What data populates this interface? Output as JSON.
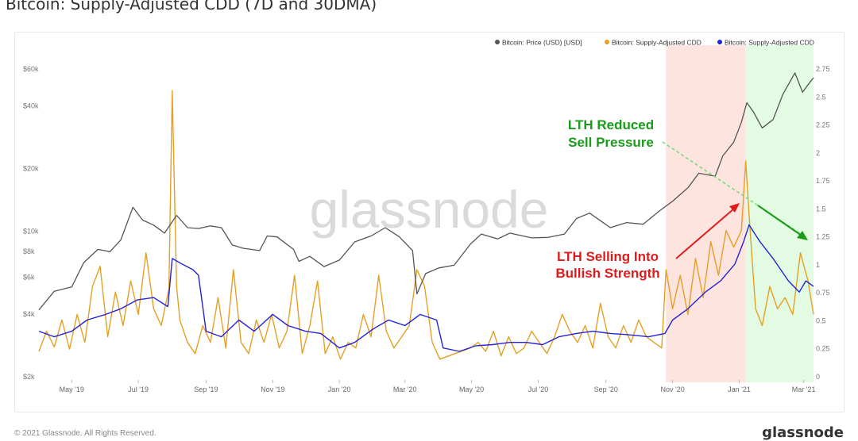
{
  "title": "Bitcoin: Supply-Adjusted CDD (7D and 30DMA)",
  "footer": {
    "copyright": "© 2021 Glassnode. All Rights Reserved.",
    "brand": "glassnode"
  },
  "watermark": "glassnode",
  "colors": {
    "price": "#555555",
    "cdd7d": "#e5a024",
    "cdd30d": "#2323d8",
    "red_zone": "#fde4df",
    "green_zone": "#e2fbe2",
    "annotation_green": "#1a9c1a",
    "annotation_red": "#e01b1b"
  },
  "legend": [
    "Bitcoin: Price (USD) [USD]",
    "Bitcoin: Supply-Adjusted CDD",
    "Bitcoin: Supply-Adjusted CDD"
  ],
  "annotations": {
    "reduced": [
      "LTH Reduced",
      "Sell Pressure"
    ],
    "selling": [
      "LTH Selling Into",
      "Bullish Strength"
    ]
  },
  "chart_data": {
    "type": "line",
    "title": "Bitcoin: Supply-Adjusted CDD (7D and 30DMA)",
    "x_start": "2019-04-01",
    "x_end": "2021-03-10",
    "x_ticks": [
      {
        "label": "May '19",
        "date": "2019-05-01"
      },
      {
        "label": "Jul '19",
        "date": "2019-07-01"
      },
      {
        "label": "Sep '19",
        "date": "2019-09-01"
      },
      {
        "label": "Nov '19",
        "date": "2019-11-01"
      },
      {
        "label": "Jan '20",
        "date": "2020-01-01"
      },
      {
        "label": "Mar '20",
        "date": "2020-03-01"
      },
      {
        "label": "May '20",
        "date": "2020-05-01"
      },
      {
        "label": "Jul '20",
        "date": "2020-07-01"
      },
      {
        "label": "Sep '20",
        "date": "2020-09-01"
      },
      {
        "label": "Nov '20",
        "date": "2020-11-01"
      },
      {
        "label": "Jan '21",
        "date": "2021-01-01"
      },
      {
        "label": "Mar '21",
        "date": "2021-03-01"
      }
    ],
    "left_axis": {
      "scale": "log",
      "range": [
        2000,
        60000
      ],
      "ticks": [
        {
          "label": "$2k",
          "value": 2000
        },
        {
          "label": "$4k",
          "value": 4000
        },
        {
          "label": "$6k",
          "value": 6000
        },
        {
          "label": "$8k",
          "value": 8000
        },
        {
          "label": "$10k",
          "value": 10000
        },
        {
          "label": "$20k",
          "value": 20000
        },
        {
          "label": "$40k",
          "value": 40000
        },
        {
          "label": "$60k",
          "value": 60000
        }
      ]
    },
    "right_axis": {
      "scale": "linear",
      "range": [
        0,
        2.75
      ],
      "ticks": [
        {
          "label": "0",
          "value": 0
        },
        {
          "label": "0.25",
          "value": 0.25
        },
        {
          "label": "0.5",
          "value": 0.5
        },
        {
          "label": "0.75",
          "value": 0.75
        },
        {
          "label": "1",
          "value": 1
        },
        {
          "label": "1.25",
          "value": 1.25
        },
        {
          "label": "1.5",
          "value": 1.5
        },
        {
          "label": "1.75",
          "value": 1.75
        },
        {
          "label": "2",
          "value": 2
        },
        {
          "label": "2.25",
          "value": 2.25
        },
        {
          "label": "2.5",
          "value": 2.5
        },
        {
          "label": "2.75",
          "value": 2.75
        }
      ]
    },
    "grid": false,
    "legend_position": "top-right",
    "shaded_regions": [
      {
        "from": "2020-10-26",
        "to": "2021-01-07",
        "color": "red"
      },
      {
        "from": "2021-01-07",
        "to": "2021-03-10",
        "color": "green"
      }
    ],
    "series": [
      {
        "name": "Bitcoin: Price (USD) [USD]",
        "axis": "left",
        "color": "#555555",
        "points": [
          [
            "2019-04-01",
            4150
          ],
          [
            "2019-04-15",
            5100
          ],
          [
            "2019-05-01",
            5350
          ],
          [
            "2019-05-12",
            7000
          ],
          [
            "2019-05-25",
            8100
          ],
          [
            "2019-06-05",
            7900
          ],
          [
            "2019-06-15",
            9000
          ],
          [
            "2019-06-26",
            12900
          ],
          [
            "2019-07-05",
            11200
          ],
          [
            "2019-07-15",
            10600
          ],
          [
            "2019-07-25",
            9700
          ],
          [
            "2019-08-05",
            11800
          ],
          [
            "2019-08-15",
            10300
          ],
          [
            "2019-08-25",
            10200
          ],
          [
            "2019-09-05",
            10500
          ],
          [
            "2019-09-15",
            10300
          ],
          [
            "2019-09-25",
            8500
          ],
          [
            "2019-10-05",
            8200
          ],
          [
            "2019-10-20",
            8000
          ],
          [
            "2019-10-27",
            9400
          ],
          [
            "2019-11-05",
            9300
          ],
          [
            "2019-11-20",
            8100
          ],
          [
            "2019-11-25",
            7100
          ],
          [
            "2019-12-05",
            7500
          ],
          [
            "2019-12-18",
            6700
          ],
          [
            "2020-01-01",
            7200
          ],
          [
            "2020-01-15",
            8800
          ],
          [
            "2020-01-30",
            9400
          ],
          [
            "2020-02-12",
            10300
          ],
          [
            "2020-02-25",
            9300
          ],
          [
            "2020-03-08",
            8000
          ],
          [
            "2020-03-12",
            4950
          ],
          [
            "2020-03-20",
            6200
          ],
          [
            "2020-04-01",
            6600
          ],
          [
            "2020-04-15",
            6800
          ],
          [
            "2020-04-30",
            8600
          ],
          [
            "2020-05-10",
            9600
          ],
          [
            "2020-05-25",
            9100
          ],
          [
            "2020-06-05",
            9700
          ],
          [
            "2020-06-25",
            9200
          ],
          [
            "2020-07-10",
            9250
          ],
          [
            "2020-07-25",
            9600
          ],
          [
            "2020-08-05",
            11400
          ],
          [
            "2020-08-17",
            12100
          ],
          [
            "2020-09-05",
            10300
          ],
          [
            "2020-09-20",
            10900
          ],
          [
            "2020-10-05",
            10700
          ],
          [
            "2020-10-20",
            12400
          ],
          [
            "2020-11-01",
            13800
          ],
          [
            "2020-11-15",
            16000
          ],
          [
            "2020-11-25",
            18800
          ],
          [
            "2020-12-10",
            18200
          ],
          [
            "2020-12-17",
            22800
          ],
          [
            "2020-12-27",
            26500
          ],
          [
            "2021-01-03",
            33000
          ],
          [
            "2021-01-08",
            41000
          ],
          [
            "2021-01-14",
            37000
          ],
          [
            "2021-01-22",
            31000
          ],
          [
            "2021-02-01",
            34000
          ],
          [
            "2021-02-10",
            45000
          ],
          [
            "2021-02-21",
            57000
          ],
          [
            "2021-02-28",
            46000
          ],
          [
            "2021-03-05",
            50000
          ],
          [
            "2021-03-10",
            54000
          ]
        ]
      },
      {
        "name": "Bitcoin: Supply-Adjusted CDD",
        "axis": "right",
        "color": "#e5a024",
        "points": [
          [
            "2019-04-01",
            0.22
          ],
          [
            "2019-04-08",
            0.4
          ],
          [
            "2019-04-15",
            0.26
          ],
          [
            "2019-04-22",
            0.5
          ],
          [
            "2019-04-29",
            0.24
          ],
          [
            "2019-05-06",
            0.55
          ],
          [
            "2019-05-13",
            0.3
          ],
          [
            "2019-05-20",
            0.8
          ],
          [
            "2019-05-27",
            0.98
          ],
          [
            "2019-06-03",
            0.35
          ],
          [
            "2019-06-10",
            0.75
          ],
          [
            "2019-06-17",
            0.45
          ],
          [
            "2019-06-24",
            0.85
          ],
          [
            "2019-07-01",
            0.55
          ],
          [
            "2019-07-08",
            1.1
          ],
          [
            "2019-07-15",
            0.6
          ],
          [
            "2019-07-22",
            0.45
          ],
          [
            "2019-07-29",
            0.78
          ],
          [
            "2019-08-01",
            2.55
          ],
          [
            "2019-08-05",
            0.8
          ],
          [
            "2019-08-08",
            0.5
          ],
          [
            "2019-08-15",
            0.3
          ],
          [
            "2019-08-22",
            0.2
          ],
          [
            "2019-08-29",
            0.45
          ],
          [
            "2019-09-05",
            0.3
          ],
          [
            "2019-09-12",
            0.7
          ],
          [
            "2019-09-19",
            0.25
          ],
          [
            "2019-09-26",
            0.95
          ],
          [
            "2019-10-03",
            0.3
          ],
          [
            "2019-10-10",
            0.2
          ],
          [
            "2019-10-17",
            0.5
          ],
          [
            "2019-10-24",
            0.3
          ],
          [
            "2019-10-31",
            0.55
          ],
          [
            "2019-11-07",
            0.25
          ],
          [
            "2019-11-14",
            0.4
          ],
          [
            "2019-11-21",
            0.9
          ],
          [
            "2019-11-28",
            0.2
          ],
          [
            "2019-12-05",
            0.45
          ],
          [
            "2019-12-12",
            0.85
          ],
          [
            "2019-12-19",
            0.2
          ],
          [
            "2019-12-26",
            0.35
          ],
          [
            "2020-01-02",
            0.15
          ],
          [
            "2020-01-09",
            0.3
          ],
          [
            "2020-01-16",
            0.25
          ],
          [
            "2020-01-23",
            0.55
          ],
          [
            "2020-01-30",
            0.35
          ],
          [
            "2020-02-06",
            0.9
          ],
          [
            "2020-02-13",
            0.4
          ],
          [
            "2020-02-20",
            0.25
          ],
          [
            "2020-02-27",
            0.35
          ],
          [
            "2020-03-05",
            0.45
          ],
          [
            "2020-03-12",
            0.95
          ],
          [
            "2020-03-19",
            0.8
          ],
          [
            "2020-03-26",
            0.3
          ],
          [
            "2020-04-02",
            0.15
          ],
          [
            "2020-04-16",
            0.2
          ],
          [
            "2020-04-30",
            0.25
          ],
          [
            "2020-05-07",
            0.3
          ],
          [
            "2020-05-14",
            0.22
          ],
          [
            "2020-05-21",
            0.4
          ],
          [
            "2020-05-28",
            0.18
          ],
          [
            "2020-06-04",
            0.35
          ],
          [
            "2020-06-11",
            0.2
          ],
          [
            "2020-06-18",
            0.25
          ],
          [
            "2020-06-25",
            0.4
          ],
          [
            "2020-07-02",
            0.3
          ],
          [
            "2020-07-09",
            0.2
          ],
          [
            "2020-07-16",
            0.35
          ],
          [
            "2020-07-23",
            0.55
          ],
          [
            "2020-07-30",
            0.4
          ],
          [
            "2020-08-06",
            0.3
          ],
          [
            "2020-08-13",
            0.45
          ],
          [
            "2020-08-20",
            0.25
          ],
          [
            "2020-08-27",
            0.65
          ],
          [
            "2020-09-03",
            0.35
          ],
          [
            "2020-09-10",
            0.25
          ],
          [
            "2020-09-17",
            0.45
          ],
          [
            "2020-09-24",
            0.3
          ],
          [
            "2020-10-01",
            0.5
          ],
          [
            "2020-10-08",
            0.35
          ],
          [
            "2020-10-15",
            0.3
          ],
          [
            "2020-10-22",
            0.25
          ],
          [
            "2020-10-26",
            0.95
          ],
          [
            "2020-11-01",
            0.6
          ],
          [
            "2020-11-08",
            0.9
          ],
          [
            "2020-11-15",
            0.55
          ],
          [
            "2020-11-22",
            1.05
          ],
          [
            "2020-11-29",
            0.7
          ],
          [
            "2020-12-06",
            1.2
          ],
          [
            "2020-12-13",
            0.9
          ],
          [
            "2020-12-20",
            1.3
          ],
          [
            "2020-12-27",
            1.15
          ],
          [
            "2021-01-03",
            1.3
          ],
          [
            "2021-01-07",
            1.92
          ],
          [
            "2021-01-11",
            1.3
          ],
          [
            "2021-01-16",
            0.6
          ],
          [
            "2021-01-22",
            0.45
          ],
          [
            "2021-01-29",
            0.8
          ],
          [
            "2021-02-05",
            0.6
          ],
          [
            "2021-02-12",
            0.7
          ],
          [
            "2021-02-19",
            0.55
          ],
          [
            "2021-02-26",
            1.1
          ],
          [
            "2021-03-05",
            0.85
          ],
          [
            "2021-03-10",
            0.55
          ]
        ]
      },
      {
        "name": "Bitcoin: Supply-Adjusted CDD",
        "axis": "right",
        "color": "#2323d8",
        "points": [
          [
            "2019-04-01",
            0.4
          ],
          [
            "2019-04-15",
            0.35
          ],
          [
            "2019-05-01",
            0.4
          ],
          [
            "2019-05-15",
            0.5
          ],
          [
            "2019-06-01",
            0.55
          ],
          [
            "2019-06-15",
            0.6
          ],
          [
            "2019-06-30",
            0.68
          ],
          [
            "2019-07-15",
            0.7
          ],
          [
            "2019-07-28",
            0.62
          ],
          [
            "2019-08-01",
            1.05
          ],
          [
            "2019-08-10",
            1.0
          ],
          [
            "2019-08-20",
            0.95
          ],
          [
            "2019-08-25",
            0.9
          ],
          [
            "2019-09-01",
            0.4
          ],
          [
            "2019-09-15",
            0.35
          ],
          [
            "2019-10-01",
            0.5
          ],
          [
            "2019-10-15",
            0.4
          ],
          [
            "2019-11-01",
            0.55
          ],
          [
            "2019-11-15",
            0.45
          ],
          [
            "2019-12-01",
            0.4
          ],
          [
            "2019-12-15",
            0.38
          ],
          [
            "2020-01-01",
            0.25
          ],
          [
            "2020-01-15",
            0.3
          ],
          [
            "2020-02-01",
            0.42
          ],
          [
            "2020-02-15",
            0.5
          ],
          [
            "2020-03-01",
            0.45
          ],
          [
            "2020-03-15",
            0.55
          ],
          [
            "2020-03-30",
            0.5
          ],
          [
            "2020-04-05",
            0.25
          ],
          [
            "2020-04-20",
            0.22
          ],
          [
            "2020-05-05",
            0.27
          ],
          [
            "2020-05-20",
            0.28
          ],
          [
            "2020-06-05",
            0.3
          ],
          [
            "2020-06-20",
            0.3
          ],
          [
            "2020-07-05",
            0.28
          ],
          [
            "2020-07-20",
            0.35
          ],
          [
            "2020-08-05",
            0.38
          ],
          [
            "2020-08-20",
            0.4
          ],
          [
            "2020-09-05",
            0.38
          ],
          [
            "2020-09-20",
            0.37
          ],
          [
            "2020-10-10",
            0.35
          ],
          [
            "2020-10-25",
            0.38
          ],
          [
            "2020-11-01",
            0.5
          ],
          [
            "2020-11-15",
            0.6
          ],
          [
            "2020-12-01",
            0.75
          ],
          [
            "2020-12-15",
            0.85
          ],
          [
            "2020-12-28",
            1.0
          ],
          [
            "2021-01-05",
            1.2
          ],
          [
            "2021-01-10",
            1.35
          ],
          [
            "2021-01-20",
            1.2
          ],
          [
            "2021-02-01",
            1.05
          ],
          [
            "2021-02-15",
            0.85
          ],
          [
            "2021-02-25",
            0.75
          ],
          [
            "2021-03-03",
            0.85
          ],
          [
            "2021-03-10",
            0.8
          ]
        ]
      }
    ]
  }
}
